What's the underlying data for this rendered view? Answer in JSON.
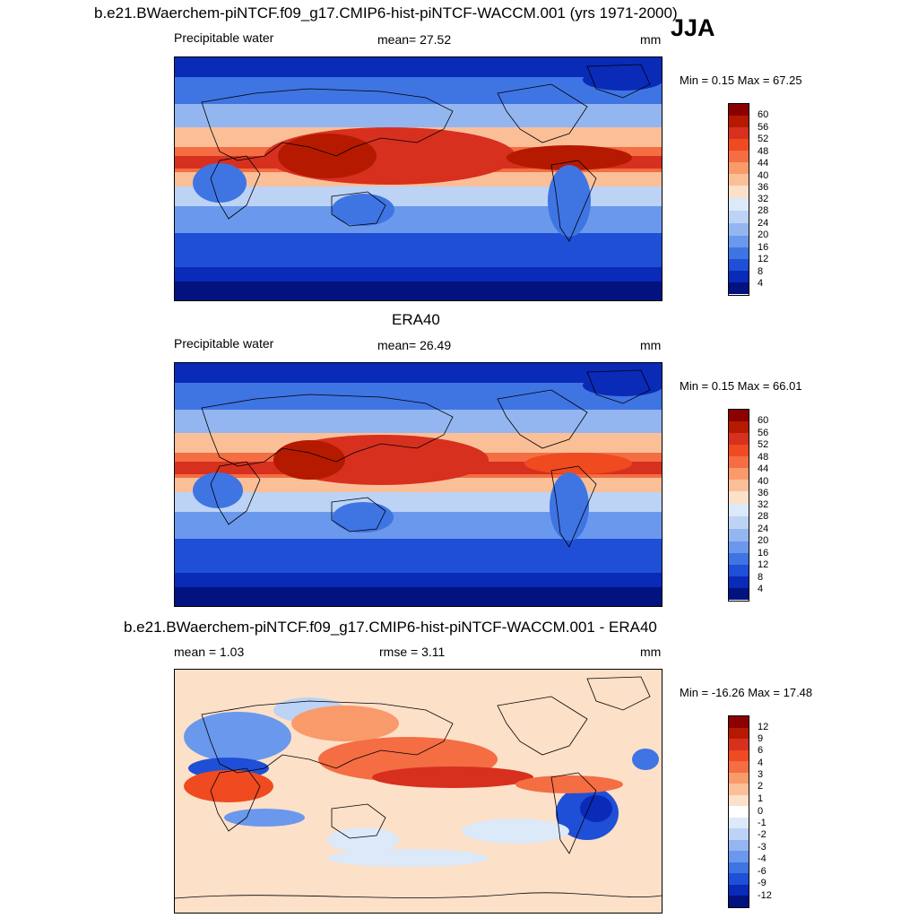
{
  "header": {
    "title": "b.e21.BWaerchem-piNTCF.f09_g17.CMIP6-hist-piNTCF-WACCM.001 (yrs 1971-2000)",
    "season": "JJA"
  },
  "panels": [
    {
      "id": "model",
      "variable": "Precipitable water",
      "mean_text": "mean=  27.52",
      "units": "mm",
      "minmax_text": "Min =   0.15 Max =  67.25",
      "colorbar_labels": [
        "60",
        "56",
        "52",
        "48",
        "44",
        "40",
        "36",
        "32",
        "28",
        "24",
        "20",
        "16",
        "12",
        "8",
        "4"
      ]
    },
    {
      "id": "obs",
      "panel_title": "ERA40",
      "variable": "Precipitable water",
      "mean_text": "mean=  26.49",
      "units": "mm",
      "minmax_text": "Min =   0.15 Max =  66.01",
      "colorbar_labels": [
        "60",
        "56",
        "52",
        "48",
        "44",
        "40",
        "36",
        "32",
        "28",
        "24",
        "20",
        "16",
        "12",
        "8",
        "4"
      ]
    },
    {
      "id": "diff",
      "panel_title": "b.e21.BWaerchem-piNTCF.f09_g17.CMIP6-hist-piNTCF-WACCM.001 - ERA40",
      "mean_text": "mean =   1.03",
      "rmse_text": "rmse =   3.11",
      "units": "mm",
      "minmax_text": "Min = -16.26 Max =  17.48",
      "colorbar_labels": [
        "12",
        "9",
        "6",
        "4",
        "3",
        "2",
        "1",
        "0",
        "-1",
        "-2",
        "-3",
        "-4",
        "-6",
        "-9",
        "-12"
      ]
    }
  ],
  "colors": {
    "abs_scale": [
      "#8b0000",
      "#b51a00",
      "#d7301f",
      "#ef4a20",
      "#f46d43",
      "#f99a6b",
      "#fbbf98",
      "#fde0c8",
      "#dce9f9",
      "#bcd3f5",
      "#93b6f0",
      "#6a98ec",
      "#3f74e3",
      "#1f4fd6",
      "#0a2ab8",
      "#02127e"
    ],
    "diff_scale": [
      "#8b0000",
      "#b51a00",
      "#d7301f",
      "#ef4a20",
      "#f46d43",
      "#f99a6b",
      "#fbbf98",
      "#fde0c8",
      "#ffffff",
      "#dce9f9",
      "#bcd3f5",
      "#93b6f0",
      "#6a98ec",
      "#3f74e3",
      "#1f4fd6",
      "#0a2ab8",
      "#02127e"
    ]
  }
}
